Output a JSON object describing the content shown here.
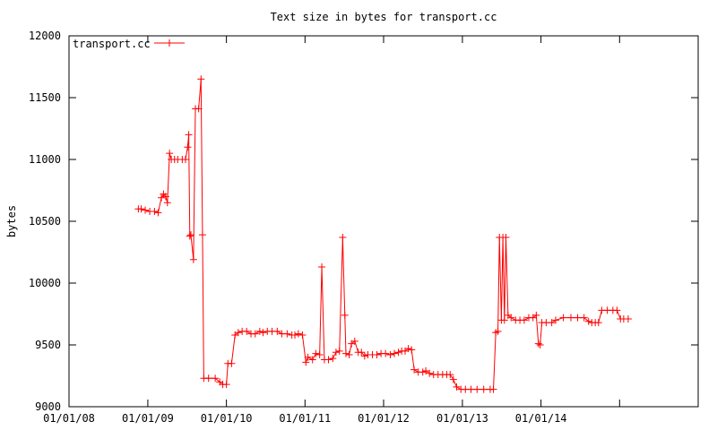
{
  "chart_data": {
    "type": "line",
    "title": "Text size in bytes for transport.cc",
    "xlabel": "",
    "ylabel": "bytes",
    "ylim": [
      9000,
      12000
    ],
    "xlim": [
      "2008-01-01",
      "2016-01-01"
    ],
    "yticks": [
      "9000",
      "9500",
      "10000",
      "10500",
      "11000",
      "11500",
      "12000"
    ],
    "xticks": [
      {
        "date": "2008-01-01",
        "label": "01/01/08"
      },
      {
        "date": "2009-01-01",
        "label": "01/01/09"
      },
      {
        "date": "2010-01-01",
        "label": "01/01/10"
      },
      {
        "date": "2011-01-01",
        "label": "01/01/11"
      },
      {
        "date": "2012-01-01",
        "label": "01/01/12"
      },
      {
        "date": "2013-01-01",
        "label": "01/01/13"
      },
      {
        "date": "2014-01-01",
        "label": "01/01/14"
      },
      {
        "date": "2015-01-01",
        "label": ""
      }
    ],
    "grid": false,
    "legend": "top-left",
    "series": [
      {
        "name": "transport.cc",
        "color": "#ff0000",
        "marker": "plus",
        "points": [
          [
            "2008-11-18",
            10600
          ],
          [
            "2008-12-01",
            10600
          ],
          [
            "2008-12-20",
            10590
          ],
          [
            "2009-01-10",
            10580
          ],
          [
            "2009-02-01",
            10580
          ],
          [
            "2009-02-18",
            10570
          ],
          [
            "2009-03-05",
            10690
          ],
          [
            "2009-03-15",
            10720
          ],
          [
            "2009-03-25",
            10700
          ],
          [
            "2009-04-02",
            10650
          ],
          [
            "2009-04-12",
            11050
          ],
          [
            "2009-04-20",
            11000
          ],
          [
            "2009-05-05",
            11000
          ],
          [
            "2009-05-20",
            11000
          ],
          [
            "2009-06-10",
            11000
          ],
          [
            "2009-06-25",
            11000
          ],
          [
            "2009-07-05",
            11100
          ],
          [
            "2009-07-10",
            11200
          ],
          [
            "2009-07-15",
            10380
          ],
          [
            "2009-07-20",
            10390
          ],
          [
            "2009-08-01",
            10190
          ],
          [
            "2009-08-10",
            11410
          ],
          [
            "2009-08-25",
            11410
          ],
          [
            "2009-09-05",
            11650
          ],
          [
            "2009-09-12",
            10390
          ],
          [
            "2009-09-18",
            9230
          ],
          [
            "2009-10-10",
            9230
          ],
          [
            "2009-11-10",
            9230
          ],
          [
            "2009-12-01",
            9200
          ],
          [
            "2009-12-15",
            9180
          ],
          [
            "2010-01-01",
            9180
          ],
          [
            "2010-01-08",
            9350
          ],
          [
            "2010-01-25",
            9350
          ],
          [
            "2010-02-10",
            9580
          ],
          [
            "2010-02-25",
            9600
          ],
          [
            "2010-03-15",
            9610
          ],
          [
            "2010-04-05",
            9610
          ],
          [
            "2010-04-25",
            9590
          ],
          [
            "2010-05-15",
            9590
          ],
          [
            "2010-06-05",
            9610
          ],
          [
            "2010-06-20",
            9600
          ],
          [
            "2010-07-10",
            9610
          ],
          [
            "2010-08-01",
            9610
          ],
          [
            "2010-08-25",
            9610
          ],
          [
            "2010-09-15",
            9590
          ],
          [
            "2010-10-10",
            9590
          ],
          [
            "2010-11-01",
            9580
          ],
          [
            "2010-11-15",
            9580
          ],
          [
            "2010-12-01",
            9590
          ],
          [
            "2010-12-20",
            9580
          ],
          [
            "2011-01-05",
            9360
          ],
          [
            "2011-01-15",
            9400
          ],
          [
            "2011-02-05",
            9380
          ],
          [
            "2011-02-20",
            9430
          ],
          [
            "2011-03-10",
            9420
          ],
          [
            "2011-03-20",
            10130
          ],
          [
            "2011-04-01",
            9380
          ],
          [
            "2011-04-20",
            9380
          ],
          [
            "2011-05-10",
            9390
          ],
          [
            "2011-05-25",
            9440
          ],
          [
            "2011-06-10",
            9450
          ],
          [
            "2011-06-25",
            10370
          ],
          [
            "2011-07-05",
            9740
          ],
          [
            "2011-07-10",
            9430
          ],
          [
            "2011-07-25",
            9420
          ],
          [
            "2011-08-05",
            9510
          ],
          [
            "2011-08-20",
            9530
          ],
          [
            "2011-09-05",
            9440
          ],
          [
            "2011-09-20",
            9440
          ],
          [
            "2011-10-05",
            9410
          ],
          [
            "2011-10-20",
            9420
          ],
          [
            "2011-11-10",
            9420
          ],
          [
            "2011-12-01",
            9420
          ],
          [
            "2011-12-20",
            9430
          ],
          [
            "2012-01-10",
            9430
          ],
          [
            "2012-02-01",
            9420
          ],
          [
            "2012-02-20",
            9430
          ],
          [
            "2012-03-10",
            9440
          ],
          [
            "2012-03-25",
            9450
          ],
          [
            "2012-04-10",
            9450
          ],
          [
            "2012-04-25",
            9470
          ],
          [
            "2012-05-10",
            9460
          ],
          [
            "2012-05-22",
            9300
          ],
          [
            "2012-06-10",
            9280
          ],
          [
            "2012-07-01",
            9280
          ],
          [
            "2012-07-15",
            9290
          ],
          [
            "2012-08-01",
            9270
          ],
          [
            "2012-08-20",
            9260
          ],
          [
            "2012-09-10",
            9260
          ],
          [
            "2012-10-01",
            9260
          ],
          [
            "2012-10-20",
            9260
          ],
          [
            "2012-11-05",
            9260
          ],
          [
            "2012-11-20",
            9220
          ],
          [
            "2012-12-05",
            9160
          ],
          [
            "2012-12-25",
            9140
          ],
          [
            "2013-01-15",
            9140
          ],
          [
            "2013-02-10",
            9140
          ],
          [
            "2013-03-10",
            9140
          ],
          [
            "2013-04-10",
            9140
          ],
          [
            "2013-05-10",
            9140
          ],
          [
            "2013-05-25",
            9140
          ],
          [
            "2013-06-05",
            9600
          ],
          [
            "2013-06-15",
            9610
          ],
          [
            "2013-06-22",
            10370
          ],
          [
            "2013-07-01",
            9700
          ],
          [
            "2013-07-08",
            10370
          ],
          [
            "2013-07-15",
            9700
          ],
          [
            "2013-07-22",
            10370
          ],
          [
            "2013-08-01",
            9740
          ],
          [
            "2013-08-15",
            9720
          ],
          [
            "2013-09-05",
            9700
          ],
          [
            "2013-09-25",
            9700
          ],
          [
            "2013-10-15",
            9700
          ],
          [
            "2013-11-05",
            9720
          ],
          [
            "2013-11-25",
            9720
          ],
          [
            "2013-12-10",
            9740
          ],
          [
            "2013-12-20",
            9510
          ],
          [
            "2013-12-28",
            9500
          ],
          [
            "2014-01-05",
            9680
          ],
          [
            "2014-01-25",
            9680
          ],
          [
            "2014-02-20",
            9680
          ],
          [
            "2014-03-10",
            9700
          ],
          [
            "2014-04-15",
            9720
          ],
          [
            "2014-05-20",
            9720
          ],
          [
            "2014-06-20",
            9720
          ],
          [
            "2014-07-20",
            9720
          ],
          [
            "2014-08-10",
            9690
          ],
          [
            "2014-08-25",
            9680
          ],
          [
            "2014-09-10",
            9680
          ],
          [
            "2014-09-25",
            9680
          ],
          [
            "2014-10-10",
            9780
          ],
          [
            "2014-11-05",
            9780
          ],
          [
            "2014-12-01",
            9780
          ],
          [
            "2014-12-20",
            9780
          ],
          [
            "2015-01-05",
            9710
          ],
          [
            "2015-01-20",
            9710
          ],
          [
            "2015-02-10",
            9710
          ]
        ]
      }
    ]
  }
}
